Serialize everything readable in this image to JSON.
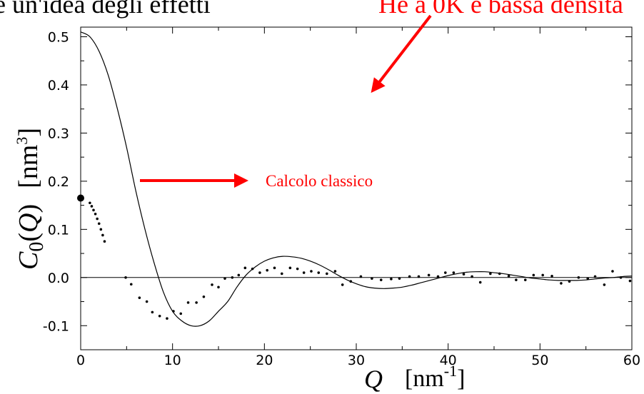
{
  "header": {
    "text_black": "e un'idea degli effetti",
    "text_red": "He a 0K e bassa densità"
  },
  "annotations": {
    "classical_label": "Calcolo classico"
  },
  "colors": {
    "annotation": "#ff0000",
    "curve": "#000000",
    "points": "#000000"
  },
  "chart_data": {
    "type": "line",
    "xlabel": "Q [nm-1]",
    "ylabel": "C0(Q) [nm3]",
    "xlim": [
      0,
      60
    ],
    "ylim": [
      -0.15,
      0.52
    ],
    "xticks": [
      "0",
      "10",
      "20",
      "30",
      "40",
      "50",
      "60"
    ],
    "yticks": [
      "0.5",
      "0.4",
      "0.3",
      "0.2",
      "0.1",
      "0.0",
      "-0.1"
    ],
    "grid": false,
    "series": [
      {
        "style": "solid-line",
        "x": [
          0,
          1,
          2,
          3,
          4,
          5,
          6,
          7,
          8,
          9,
          10,
          11,
          12,
          13,
          14,
          15,
          16,
          17,
          18,
          19,
          20,
          21,
          22,
          23,
          24,
          25,
          26,
          27,
          28,
          29,
          30,
          31,
          32,
          33,
          34,
          35,
          36,
          37,
          38,
          39,
          40,
          41,
          42,
          43,
          44,
          45,
          46,
          47,
          48,
          49,
          50,
          51,
          52,
          53,
          54,
          55,
          56,
          57,
          58,
          59,
          60
        ],
        "y": [
          0.51,
          0.5,
          0.47,
          0.42,
          0.35,
          0.27,
          0.18,
          0.1,
          0.03,
          -0.03,
          -0.07,
          -0.09,
          -0.1,
          -0.1,
          -0.09,
          -0.07,
          -0.05,
          -0.02,
          0.005,
          0.022,
          0.034,
          0.041,
          0.044,
          0.043,
          0.04,
          0.034,
          0.026,
          0.016,
          0.005,
          -0.005,
          -0.013,
          -0.019,
          -0.022,
          -0.023,
          -0.022,
          -0.02,
          -0.016,
          -0.011,
          -0.006,
          -0.001,
          0.004,
          0.008,
          0.011,
          0.012,
          0.012,
          0.01,
          0.008,
          0.005,
          0.002,
          -0.001,
          -0.003,
          -0.005,
          -0.006,
          -0.006,
          -0.006,
          -0.005,
          -0.003,
          -0.001,
          0.0,
          0.002,
          0.003
        ]
      },
      {
        "style": "dots",
        "x": [
          1.0,
          1.2,
          1.4,
          1.6,
          1.8,
          2.0,
          2.2,
          2.4,
          2.6,
          4.9,
          5.5,
          6.4,
          7.2,
          7.8,
          8.6,
          9.4,
          10.1,
          10.9,
          11.7,
          12.6,
          13.4,
          14.3,
          15.0,
          15.7,
          16.5,
          17.2,
          17.9,
          18.7,
          19.5,
          20.3,
          21.1,
          21.9,
          22.8,
          23.6,
          24.3,
          25.1,
          25.9,
          26.8,
          27.7,
          28.5,
          29.4,
          30.5,
          31.7,
          32.7,
          33.8,
          34.7,
          35.8,
          36.8,
          37.9,
          38.9,
          39.7,
          40.6,
          41.7,
          42.6,
          43.5,
          44.6,
          45.6,
          46.6,
          47.4,
          48.4,
          49.3,
          50.3,
          51.3,
          52.3,
          53.2,
          54.2,
          55.2,
          56.0,
          57.0,
          57.9,
          58.8,
          59.8
        ],
        "y": [
          0.155,
          0.148,
          0.14,
          0.132,
          0.122,
          0.112,
          0.1,
          0.088,
          0.075,
          0.0,
          -0.014,
          -0.042,
          -0.05,
          -0.072,
          -0.08,
          -0.085,
          -0.07,
          -0.075,
          -0.052,
          -0.052,
          -0.04,
          -0.015,
          -0.02,
          -0.002,
          0.0,
          0.005,
          0.02,
          0.018,
          0.01,
          0.015,
          0.02,
          0.008,
          0.02,
          0.018,
          0.01,
          0.013,
          0.01,
          0.008,
          0.013,
          -0.015,
          -0.008,
          0.002,
          -0.002,
          -0.005,
          -0.003,
          -0.002,
          0.002,
          0.002,
          0.005,
          0.002,
          0.01,
          0.01,
          0.007,
          0.002,
          -0.01,
          0.008,
          0.008,
          0.003,
          -0.005,
          -0.005,
          0.005,
          0.005,
          0.003,
          -0.012,
          -0.008,
          0.0,
          -0.002,
          0.002,
          -0.015,
          0.013,
          0.0,
          -0.007
        ]
      },
      {
        "style": "big-dot",
        "x": [
          0
        ],
        "y": [
          0.165
        ]
      }
    ]
  }
}
